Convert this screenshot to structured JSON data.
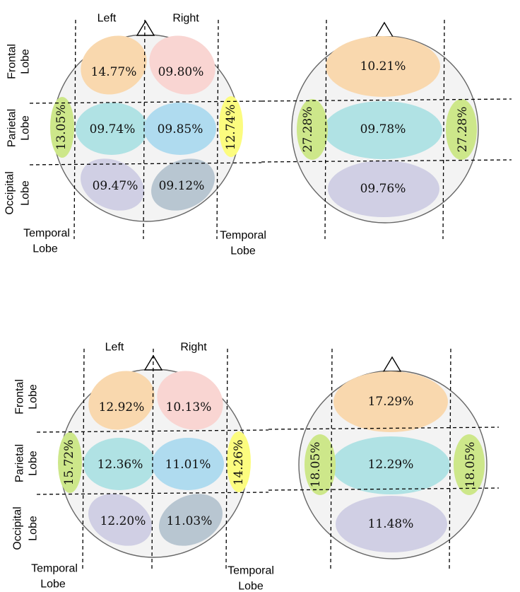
{
  "labels": {
    "left": "Left",
    "right": "Right",
    "frontal": [
      "Frontal",
      "Lobe"
    ],
    "parietal": [
      "Parietal",
      "Lobe"
    ],
    "occipital": [
      "Occipital",
      "Lobe"
    ],
    "temporal": [
      "Temporal",
      "Lobe"
    ]
  },
  "colors": {
    "frontal_left": "#f9d8ae",
    "frontal_right": "#f9d5d2",
    "parietal_left": "#b0e2e4",
    "parietal_right": "#afdbef",
    "occipital_left": "#d0cfe4",
    "occipital_right": "#b8c6d1",
    "temporal_left": "#cde78a",
    "temporal_right": "#fcfc7f",
    "temporal_merged": "#cde78a"
  },
  "panels": [
    {
      "type": "hemispheric",
      "frontal_left": "14.77%",
      "frontal_right": "09.80%",
      "parietal_left": "09.74%",
      "parietal_right": "09.85%",
      "occipital_left": "09.47%",
      "occipital_right": "09.12%",
      "temporal_left": "13.05%",
      "temporal_right": "12.74%"
    },
    {
      "type": "merged",
      "frontal": "10.21%",
      "parietal": "09.78%",
      "occipital": "09.76%",
      "temporal_left": "27.28%",
      "temporal_right": "27.28%"
    },
    {
      "type": "hemispheric",
      "frontal_left": "12.92%",
      "frontal_right": "10.13%",
      "parietal_left": "12.36%",
      "parietal_right": "11.01%",
      "occipital_left": "12.20%",
      "occipital_right": "11.03%",
      "temporal_left": "15.72%",
      "temporal_right": "14.26%"
    },
    {
      "type": "merged",
      "frontal": "17.29%",
      "parietal": "12.29%",
      "occipital": "11.48%",
      "temporal_left": "18.05%",
      "temporal_right": "18.05%"
    }
  ]
}
